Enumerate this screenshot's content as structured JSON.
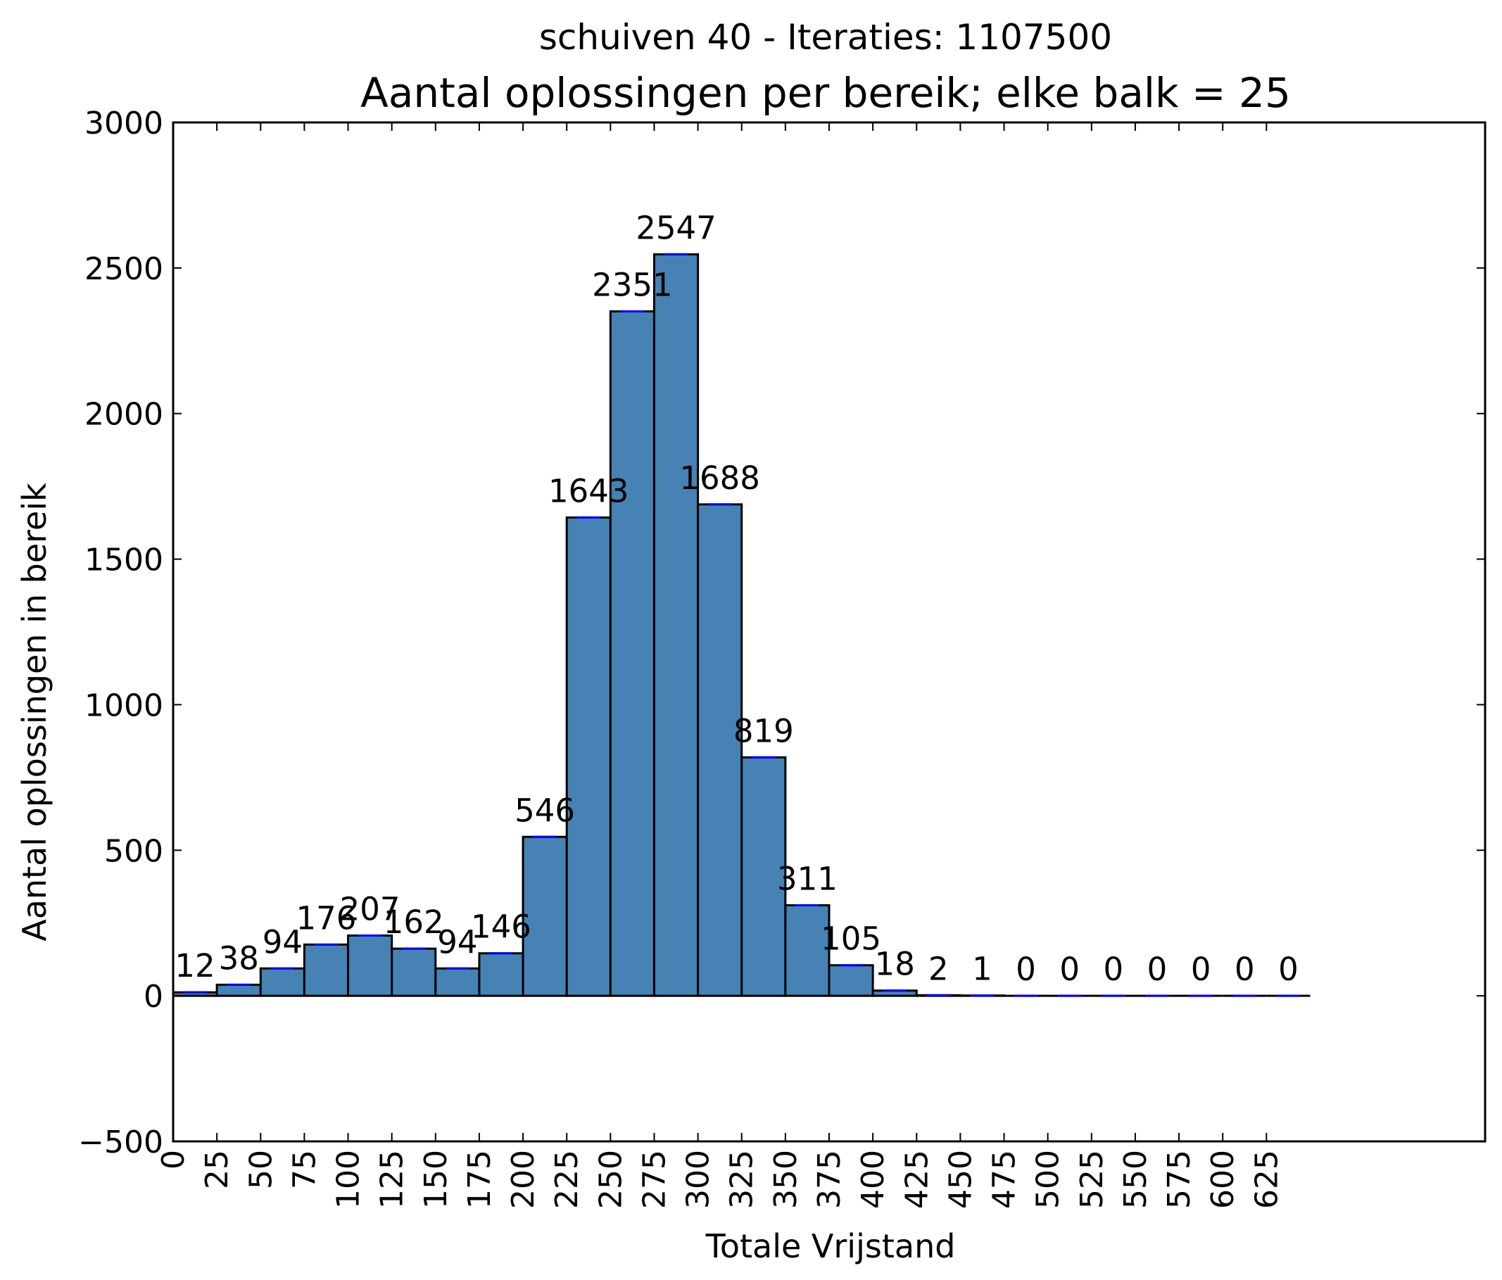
{
  "chart_data": {
    "type": "bar",
    "suptitle": "schuiven 40 - Iteraties: 1107500",
    "title": "Aantal oplossingen per bereik; elke balk = 25",
    "xlabel": "Totale Vrijstand",
    "ylabel": "Aantal oplossingen in bereik",
    "bin_width": 25,
    "x": [
      0,
      25,
      50,
      75,
      100,
      125,
      150,
      175,
      200,
      225,
      250,
      275,
      300,
      325,
      350,
      375,
      400,
      425,
      450,
      475,
      500,
      525,
      550,
      575,
      600,
      625
    ],
    "values": [
      12,
      38,
      94,
      176,
      207,
      162,
      94,
      146,
      546,
      1643,
      2351,
      2547,
      1688,
      819,
      311,
      105,
      18,
      2,
      1,
      0,
      0,
      0,
      0,
      0,
      0,
      0
    ],
    "data_labels": [
      "12",
      "38",
      "94",
      "176",
      "207",
      "162",
      "94",
      "146",
      "546",
      "1643",
      "2351",
      "2547",
      "1688",
      "819",
      "311",
      "105",
      "18",
      "2",
      "1",
      "0",
      "0",
      "0",
      "0",
      "0",
      "0",
      "0"
    ],
    "xlim": [
      0,
      750
    ],
    "ylim": [
      -500,
      3000
    ],
    "xticks": [
      0,
      25,
      50,
      75,
      100,
      125,
      150,
      175,
      200,
      225,
      250,
      275,
      300,
      325,
      350,
      375,
      400,
      425,
      450,
      475,
      500,
      525,
      550,
      575,
      600,
      625
    ],
    "xtick_labels": [
      "0",
      "25",
      "50",
      "75",
      "100",
      "125",
      "150",
      "175",
      "200",
      "225",
      "250",
      "275",
      "300",
      "325",
      "350",
      "375",
      "400",
      "425",
      "450",
      "475",
      "500",
      "525",
      "550",
      "575",
      "600",
      "625"
    ],
    "yticks": [
      -500,
      0,
      500,
      1000,
      1500,
      2000,
      2500,
      3000
    ],
    "ytick_labels": [
      "−500",
      "0",
      "500",
      "1000",
      "1500",
      "2000",
      "2500",
      "3000"
    ],
    "grid": false,
    "legend": "none",
    "colors": {
      "bar": "#4682b4",
      "edge": "#000000",
      "cap": "#0000ff"
    }
  }
}
